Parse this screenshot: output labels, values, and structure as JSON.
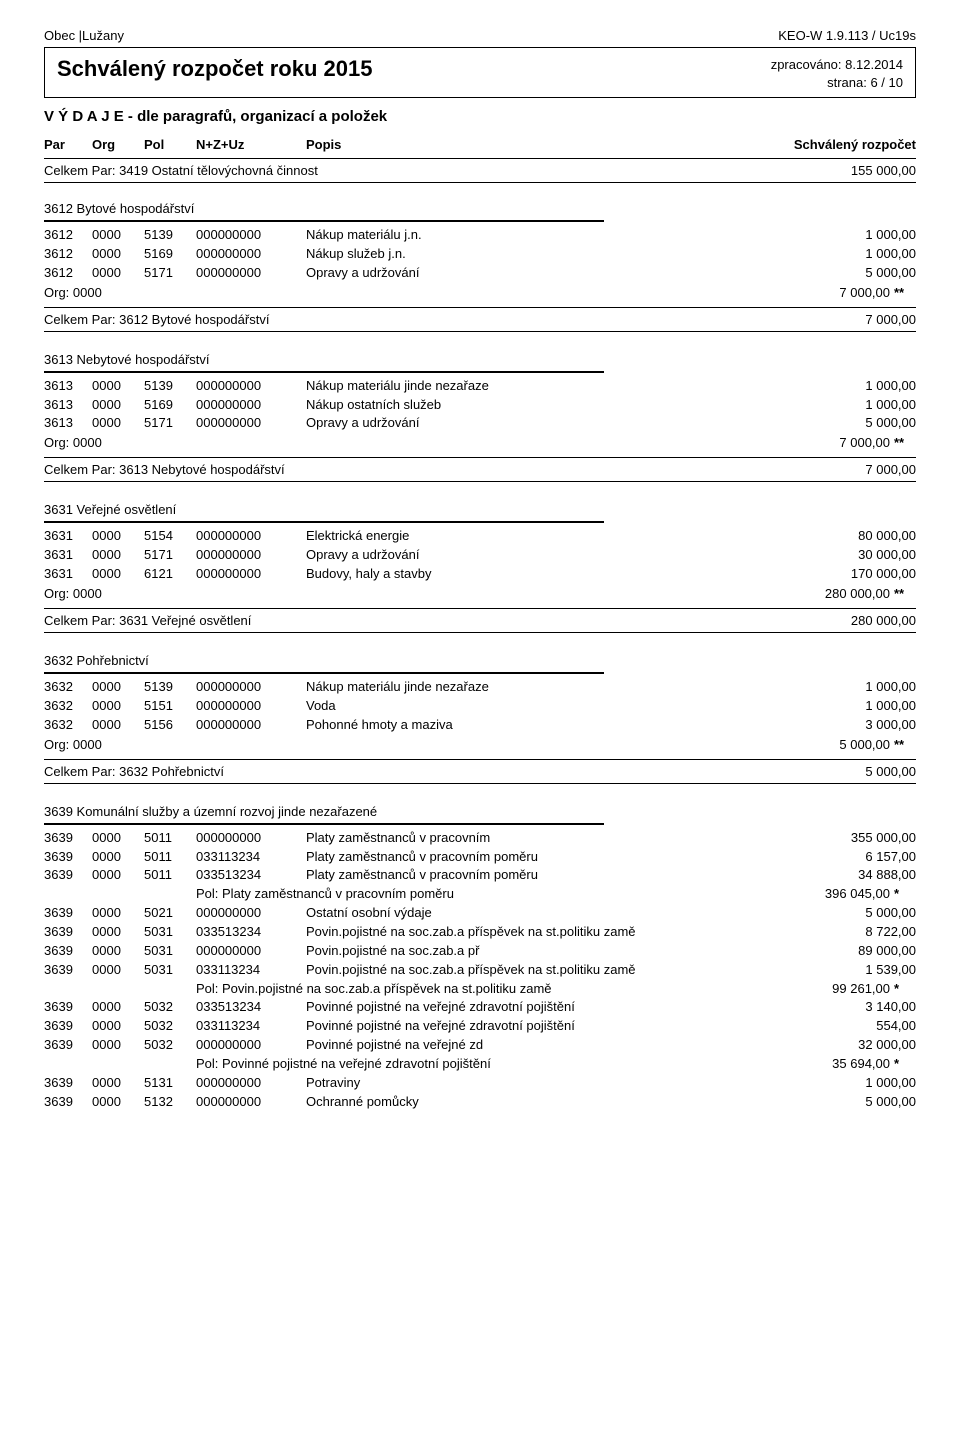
{
  "top": {
    "left": "Obec |Lužany",
    "right": "KEO-W 1.9.113 / Uc19s"
  },
  "header": {
    "title": "Schválený rozpočet roku 2015",
    "processed_label": "zpracováno:",
    "processed_value": "8.12.2014",
    "page_label": "strana:",
    "page_value": "6 / 10"
  },
  "subhead": "V Ý D A J E - dle paragrafů, organizací a položek",
  "columns": {
    "par": "Par",
    "org": "Org",
    "pol": "Pol",
    "nzuz": "N+Z+Uz",
    "popis": "Popis",
    "sr": "Schválený rozpočet"
  },
  "initial_sum": {
    "label": "Celkem Par: 3419 Ostatní tělovýchovná činnost",
    "value": "155 000,00"
  },
  "org_prefix": "Org:",
  "org_code": "0000",
  "celkem_prefix": "Celkem Par:",
  "pol_prefix": "Pol:",
  "sections": [
    {
      "head": "3612  Bytové hospodářství",
      "rows": [
        {
          "par": "3612",
          "org": "0000",
          "pol": "5139",
          "nzuz": "000000000",
          "popis": "Nákup materiálu j.n.",
          "val": "1 000,00"
        },
        {
          "par": "3612",
          "org": "0000",
          "pol": "5169",
          "nzuz": "000000000",
          "popis": "Nákup služeb j.n.",
          "val": "1 000,00"
        },
        {
          "par": "3612",
          "org": "0000",
          "pol": "5171",
          "nzuz": "000000000",
          "popis": "Opravy a udržování",
          "val": "5 000,00"
        }
      ],
      "org_total": "7 000,00",
      "celkem_label": "3612 Bytové hospodářství",
      "celkem_value": "7 000,00"
    },
    {
      "head": "3613  Nebytové hospodářství",
      "rows": [
        {
          "par": "3613",
          "org": "0000",
          "pol": "5139",
          "nzuz": "000000000",
          "popis": "Nákup materiálu jinde nezařaze",
          "val": "1 000,00"
        },
        {
          "par": "3613",
          "org": "0000",
          "pol": "5169",
          "nzuz": "000000000",
          "popis": "Nákup ostatních služeb",
          "val": "1 000,00"
        },
        {
          "par": "3613",
          "org": "0000",
          "pol": "5171",
          "nzuz": "000000000",
          "popis": "Opravy a udržování",
          "val": "5 000,00"
        }
      ],
      "org_total": "7 000,00",
      "celkem_label": "3613 Nebytové hospodářství",
      "celkem_value": "7 000,00"
    },
    {
      "head": "3631  Veřejné osvětlení",
      "rows": [
        {
          "par": "3631",
          "org": "0000",
          "pol": "5154",
          "nzuz": "000000000",
          "popis": "Elektrická energie",
          "val": "80 000,00"
        },
        {
          "par": "3631",
          "org": "0000",
          "pol": "5171",
          "nzuz": "000000000",
          "popis": "Opravy a udržování",
          "val": "30 000,00"
        },
        {
          "par": "3631",
          "org": "0000",
          "pol": "6121",
          "nzuz": "000000000",
          "popis": "Budovy, haly a stavby",
          "val": "170 000,00"
        }
      ],
      "org_total": "280 000,00",
      "celkem_label": "3631 Veřejné osvětlení",
      "celkem_value": "280 000,00"
    },
    {
      "head": "3632  Pohřebnictví",
      "rows": [
        {
          "par": "3632",
          "org": "0000",
          "pol": "5139",
          "nzuz": "000000000",
          "popis": "Nákup materiálu jinde nezařaze",
          "val": "1 000,00"
        },
        {
          "par": "3632",
          "org": "0000",
          "pol": "5151",
          "nzuz": "000000000",
          "popis": "Voda",
          "val": "1 000,00"
        },
        {
          "par": "3632",
          "org": "0000",
          "pol": "5156",
          "nzuz": "000000000",
          "popis": "Pohonné hmoty a maziva",
          "val": "3 000,00"
        }
      ],
      "org_total": "5 000,00",
      "celkem_label": "3632 Pohřebnictví",
      "celkem_value": "5 000,00"
    }
  ],
  "final_section": {
    "head": "3639  Komunální služby a územní rozvoj jinde nezařazené",
    "rows": [
      {
        "type": "data",
        "par": "3639",
        "org": "0000",
        "pol": "5011",
        "nzuz": "000000000",
        "popis": "Platy zaměstnanců v pracovním",
        "val": "355 000,00"
      },
      {
        "type": "data",
        "par": "3639",
        "org": "0000",
        "pol": "5011",
        "nzuz": "033113234",
        "popis": "Platy zaměstnanců v pracovním poměru",
        "val": "6 157,00"
      },
      {
        "type": "data",
        "par": "3639",
        "org": "0000",
        "pol": "5011",
        "nzuz": "033513234",
        "popis": "Platy zaměstnanců v pracovním poměru",
        "val": "34 888,00"
      },
      {
        "type": "pol",
        "popis": "Platy zaměstnanců v pracovním poměru",
        "val": "396 045,00"
      },
      {
        "type": "data",
        "par": "3639",
        "org": "0000",
        "pol": "5021",
        "nzuz": "000000000",
        "popis": "Ostatní osobní výdaje",
        "val": "5 000,00"
      },
      {
        "type": "data",
        "par": "3639",
        "org": "0000",
        "pol": "5031",
        "nzuz": "033513234",
        "popis": "Povin.pojistné na soc.zab.a příspěvek na st.politiku zamě",
        "val": "8 722,00"
      },
      {
        "type": "data",
        "par": "3639",
        "org": "0000",
        "pol": "5031",
        "nzuz": "000000000",
        "popis": "Povin.pojistné na soc.zab.a př",
        "val": "89 000,00"
      },
      {
        "type": "data",
        "par": "3639",
        "org": "0000",
        "pol": "5031",
        "nzuz": "033113234",
        "popis": "Povin.pojistné na soc.zab.a příspěvek na st.politiku zamě",
        "val": "1 539,00"
      },
      {
        "type": "pol",
        "popis": "Povin.pojistné na soc.zab.a příspěvek na st.politiku zamě",
        "val": "99 261,00"
      },
      {
        "type": "data",
        "par": "3639",
        "org": "0000",
        "pol": "5032",
        "nzuz": "033513234",
        "popis": "Povinné pojistné na veřejné zdravotní pojištění",
        "val": "3 140,00"
      },
      {
        "type": "data",
        "par": "3639",
        "org": "0000",
        "pol": "5032",
        "nzuz": "033113234",
        "popis": "Povinné pojistné na veřejné zdravotní pojištění",
        "val": "554,00"
      },
      {
        "type": "data",
        "par": "3639",
        "org": "0000",
        "pol": "5032",
        "nzuz": "000000000",
        "popis": "Povinné pojistné na veřejné zd",
        "val": "32 000,00"
      },
      {
        "type": "pol",
        "popis": "Povinné pojistné na veřejné zdravotní pojištění",
        "val": "35 694,00"
      },
      {
        "type": "data",
        "par": "3639",
        "org": "0000",
        "pol": "5131",
        "nzuz": "000000000",
        "popis": "Potraviny",
        "val": "1 000,00"
      },
      {
        "type": "data",
        "par": "3639",
        "org": "0000",
        "pol": "5132",
        "nzuz": "000000000",
        "popis": "Ochranné pomůcky",
        "val": "5 000,00"
      }
    ]
  },
  "stars": {
    "single": "*",
    "double": "**"
  }
}
